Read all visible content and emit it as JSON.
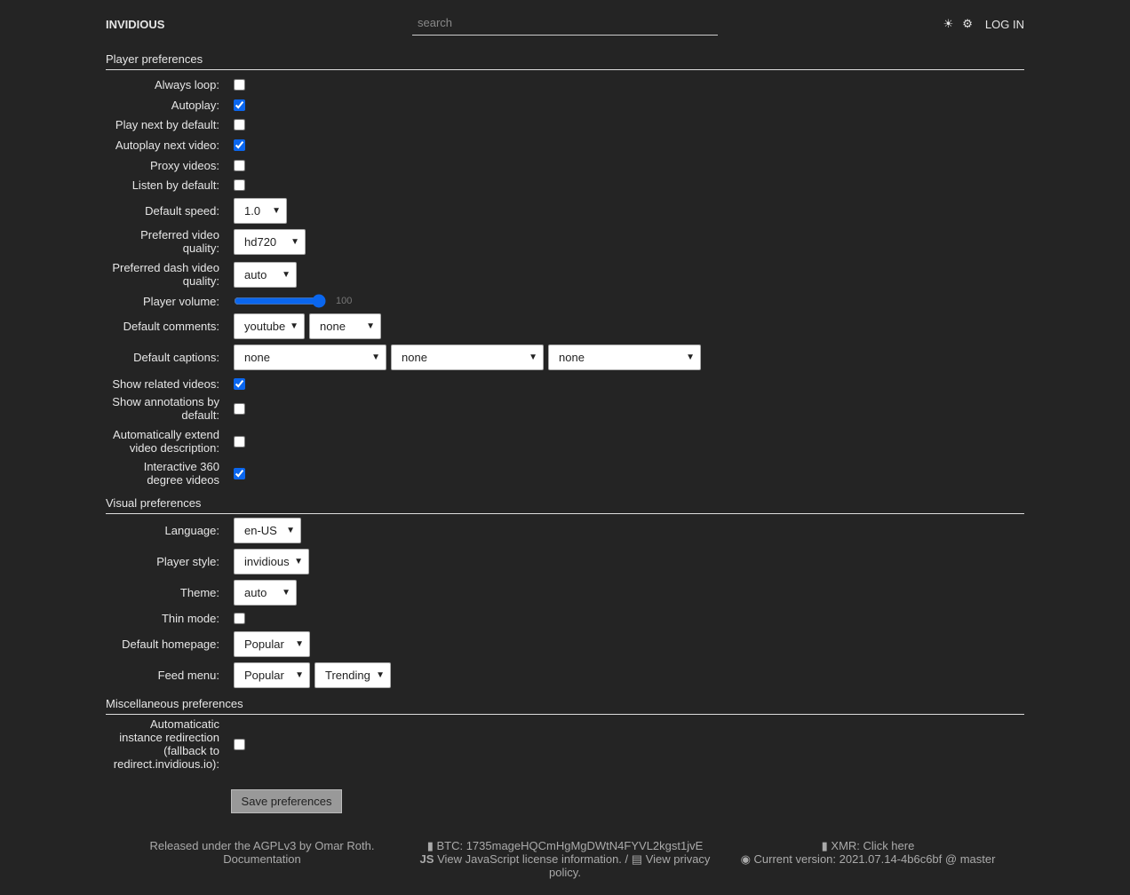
{
  "nav": {
    "brand": "INVIDIOUS",
    "search_placeholder": "search",
    "theme_icon": "sun-icon",
    "settings_icon": "gear-icon",
    "login": "LOG IN"
  },
  "sections": [
    {
      "title": "Player preferences",
      "rows": [
        {
          "label": "Always loop:",
          "type": "checkbox",
          "checked": false
        },
        {
          "label": "Autoplay:",
          "type": "checkbox",
          "checked": true
        },
        {
          "label": "Play next by default:",
          "type": "checkbox",
          "checked": false
        },
        {
          "label": "Autoplay next video:",
          "type": "checkbox",
          "checked": true
        },
        {
          "label": "Proxy videos:",
          "type": "checkbox",
          "checked": false
        },
        {
          "label": "Listen by default:",
          "type": "checkbox",
          "checked": false
        },
        {
          "label": "Default speed:",
          "type": "select",
          "values": [
            "1.0"
          ]
        },
        {
          "label": "Preferred video quality:",
          "type": "select",
          "values": [
            "hd720"
          ]
        },
        {
          "label": "Preferred dash video quality:",
          "type": "select",
          "values": [
            "auto"
          ]
        },
        {
          "label": "Player volume:",
          "type": "range",
          "value": 100
        },
        {
          "label": "Default comments:",
          "type": "select",
          "values": [
            "youtube",
            "none"
          ]
        },
        {
          "label": "Default captions:",
          "type": "select",
          "values": [
            "none",
            "none",
            "none"
          ]
        },
        {
          "label": "Show related videos:",
          "type": "checkbox",
          "checked": true
        },
        {
          "label": "Show annotations by default:",
          "type": "checkbox",
          "checked": false
        },
        {
          "label": "Automatically extend video description:",
          "type": "checkbox",
          "checked": false
        },
        {
          "label": "Interactive 360 degree videos",
          "type": "checkbox",
          "checked": true
        }
      ]
    },
    {
      "title": "Visual preferences",
      "rows": [
        {
          "label": "Language:",
          "type": "select",
          "values": [
            "en-US"
          ]
        },
        {
          "label": "Player style:",
          "type": "select",
          "values": [
            "invidious"
          ]
        },
        {
          "label": "Theme:",
          "type": "select",
          "values": [
            "auto"
          ]
        },
        {
          "label": "Thin mode:",
          "type": "checkbox",
          "checked": false
        },
        {
          "label": "Default homepage:",
          "type": "select",
          "values": [
            "Popular"
          ]
        },
        {
          "label": "Feed menu:",
          "type": "select",
          "values": [
            "Popular",
            "Trending"
          ]
        }
      ]
    },
    {
      "title": "Miscellaneous preferences",
      "rows": [
        {
          "label": "Automaticatic instance redirection (fallback to redirect.invidious.io):",
          "type": "checkbox",
          "checked": false
        }
      ]
    }
  ],
  "save_label": "Save preferences",
  "footer": {
    "license": "Released under the AGPLv3 by Omar Roth.",
    "documentation": "Documentation",
    "btc": "BTC: 1735mageHQCmHgMgDWtN4FYVL2kgst1jvE",
    "js_license": "View JavaScript license information.",
    "separator": "/",
    "privacy": "View privacy policy.",
    "xmr": "XMR: Click here",
    "version": "Current version: 2021.07.14-4b6c6bf @ master"
  },
  "colors": {
    "background": "#242424",
    "accent": "#0a66ee"
  }
}
